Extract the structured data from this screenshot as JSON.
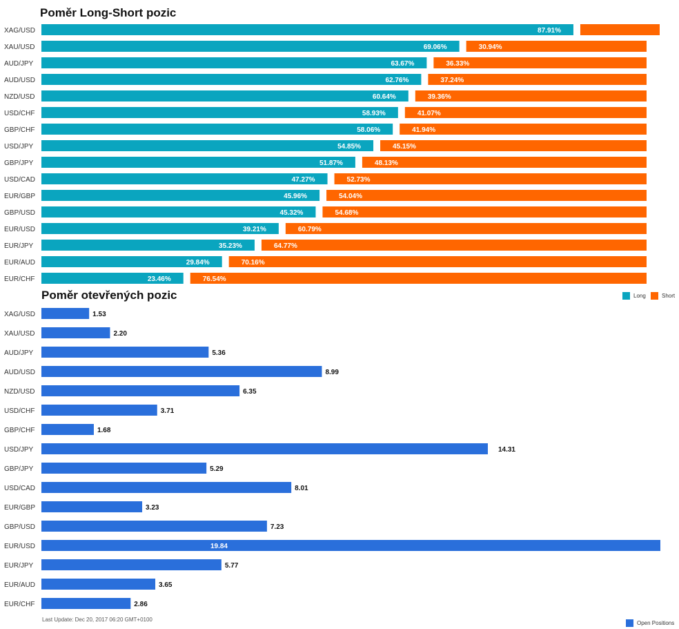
{
  "colors": {
    "long": "#0aa5bf",
    "short": "#ff6600",
    "open": "#2a6fdb"
  },
  "chart_data": [
    {
      "type": "bar",
      "orientation": "horizontal-stacked",
      "title": "Poměr Long-Short pozic",
      "categories": [
        "XAG/USD",
        "XAU/USD",
        "AUD/JPY",
        "AUD/USD",
        "NZD/USD",
        "USD/CHF",
        "GBP/CHF",
        "USD/JPY",
        "GBP/JPY",
        "USD/CAD",
        "EUR/GBP",
        "GBP/USD",
        "EUR/USD",
        "EUR/JPY",
        "EUR/AUD",
        "EUR/CHF"
      ],
      "series": [
        {
          "name": "Long",
          "values": [
            87.91,
            69.06,
            63.67,
            62.76,
            60.64,
            58.93,
            58.06,
            54.85,
            51.87,
            47.27,
            45.96,
            45.32,
            39.21,
            35.23,
            29.84,
            23.46
          ],
          "labels": [
            "87.91%",
            "69.06%",
            "63.67%",
            "62.76%",
            "60.64%",
            "58.93%",
            "58.06%",
            "54.85%",
            "51.87%",
            "47.27%",
            "45.96%",
            "45.32%",
            "39.21%",
            "35.23%",
            "29.84%",
            "23.46%"
          ]
        },
        {
          "name": "Short",
          "values": [
            12.09,
            30.94,
            36.33,
            37.24,
            39.36,
            41.07,
            41.94,
            45.15,
            48.13,
            52.73,
            54.04,
            54.68,
            60.79,
            64.77,
            70.16,
            76.54
          ],
          "labels": [
            "",
            "30.94%",
            "36.33%",
            "37.24%",
            "39.36%",
            "41.07%",
            "41.94%",
            "45.15%",
            "48.13%",
            "52.73%",
            "54.04%",
            "54.68%",
            "60.79%",
            "64.77%",
            "70.16%",
            "76.54%"
          ]
        }
      ],
      "legend": "top-right"
    },
    {
      "type": "bar",
      "orientation": "horizontal",
      "title": "Poměr otevřených pozic",
      "categories": [
        "XAG/USD",
        "XAU/USD",
        "AUD/JPY",
        "AUD/USD",
        "NZD/USD",
        "USD/CHF",
        "GBP/CHF",
        "USD/JPY",
        "GBP/JPY",
        "USD/CAD",
        "EUR/GBP",
        "GBP/USD",
        "EUR/USD",
        "EUR/JPY",
        "EUR/AUD",
        "EUR/CHF"
      ],
      "series": [
        {
          "name": "Open Positions",
          "values": [
            1.53,
            2.2,
            5.36,
            8.99,
            6.35,
            3.71,
            1.68,
            14.31,
            5.29,
            8.01,
            3.23,
            7.23,
            19.84,
            5.77,
            3.65,
            2.86
          ],
          "labels": [
            "1.53",
            "2.20",
            "5.36",
            "8.99",
            "6.35",
            "3.71",
            "1.68",
            "14.31",
            "5.29",
            "8.01",
            "3.23",
            "7.23",
            "19.84",
            "5.77",
            "3.65",
            "2.86"
          ]
        }
      ],
      "legend": "bottom-right"
    }
  ],
  "legend": {
    "long": "Long",
    "short": "Short",
    "open": "Open Positions"
  },
  "footer": "Last Update: Dec 20, 2017 06:20 GMT+0100"
}
